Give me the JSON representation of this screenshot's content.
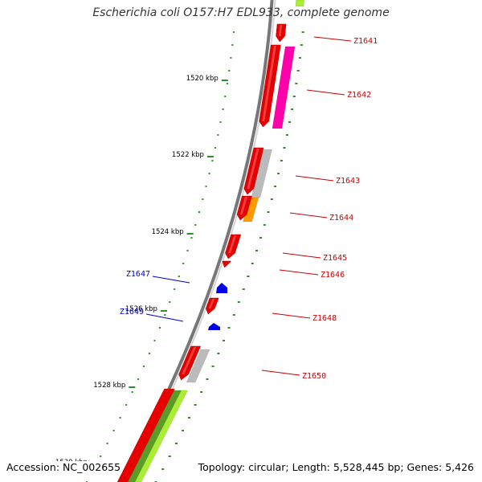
{
  "title": "Escherichia coli O157:H7 EDL933, complete genome",
  "footer": {
    "accession": "Accession: NC_002655",
    "summary": "Topology: circular; Length: 5,528,445 bp; Genes: 5,426"
  },
  "colors": {
    "backbone": "#8a8a8a",
    "tick": "#2e8b2e",
    "forward_gene": "#e60000",
    "reverse_gene": "#0000e6",
    "forward_label": "#cc0000",
    "reverse_label": "#0000cc",
    "feature_magenta": "#ff00aa",
    "feature_gray": "#bbbbbb",
    "feature_orange": "#ff9900",
    "feature_yellowgreen": "#aaee33",
    "feature_darkgreen": "#5c9a2a"
  },
  "scale_labels": [
    "1520 kbp",
    "1522 kbp",
    "1524 kbp",
    "1526 kbp",
    "1528 kbp",
    "1530 kbp"
  ],
  "genes": [
    {
      "label": "Z1641",
      "strand": "forward"
    },
    {
      "label": "Z1642",
      "strand": "forward"
    },
    {
      "label": "Z1643",
      "strand": "forward"
    },
    {
      "label": "Z1644",
      "strand": "forward"
    },
    {
      "label": "Z1645",
      "strand": "forward"
    },
    {
      "label": "Z1646",
      "strand": "forward"
    },
    {
      "label": "Z1647",
      "strand": "reverse"
    },
    {
      "label": "Z1648",
      "strand": "forward"
    },
    {
      "label": "Z1649",
      "strand": "reverse"
    },
    {
      "label": "Z1650",
      "strand": "forward"
    }
  ]
}
